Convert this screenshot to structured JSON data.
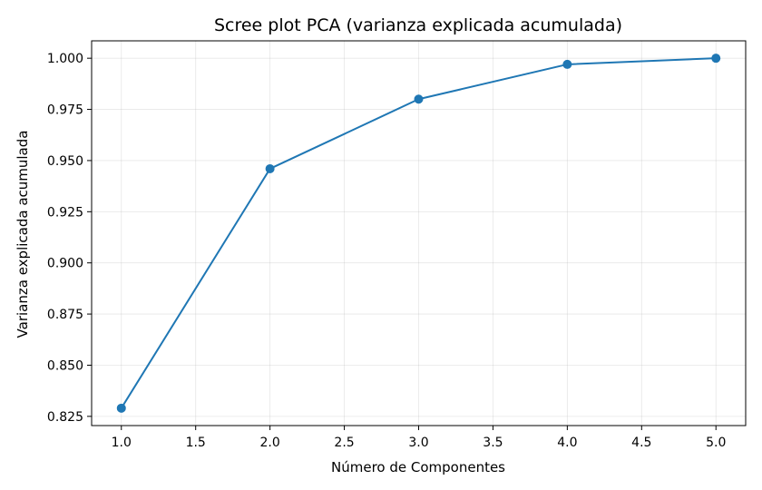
{
  "chart_data": {
    "type": "line",
    "title": "Scree plot PCA (varianza explicada acumulada)",
    "xlabel": "Número de Componentes",
    "ylabel": "Varianza explicada acumulada",
    "x": [
      1,
      2,
      3,
      4,
      5
    ],
    "series": [
      {
        "values": [
          0.829,
          0.946,
          0.98,
          0.997,
          1.0
        ],
        "color": "#1f77b4",
        "marker": "circle"
      }
    ],
    "xlim": [
      0.8,
      5.2
    ],
    "ylim": [
      0.8205,
      1.0085
    ],
    "xticks": [
      1.0,
      1.5,
      2.0,
      2.5,
      3.0,
      3.5,
      4.0,
      4.5,
      5.0
    ],
    "xtick_labels": [
      "1.0",
      "1.5",
      "2.0",
      "2.5",
      "3.0",
      "3.5",
      "4.0",
      "4.5",
      "5.0"
    ],
    "yticks": [
      0.825,
      0.85,
      0.875,
      0.9,
      0.925,
      0.95,
      0.975,
      1.0
    ],
    "ytick_labels": [
      "0.825",
      "0.850",
      "0.875",
      "0.900",
      "0.925",
      "0.950",
      "0.975",
      "1.000"
    ],
    "grid": true,
    "legend": false
  }
}
